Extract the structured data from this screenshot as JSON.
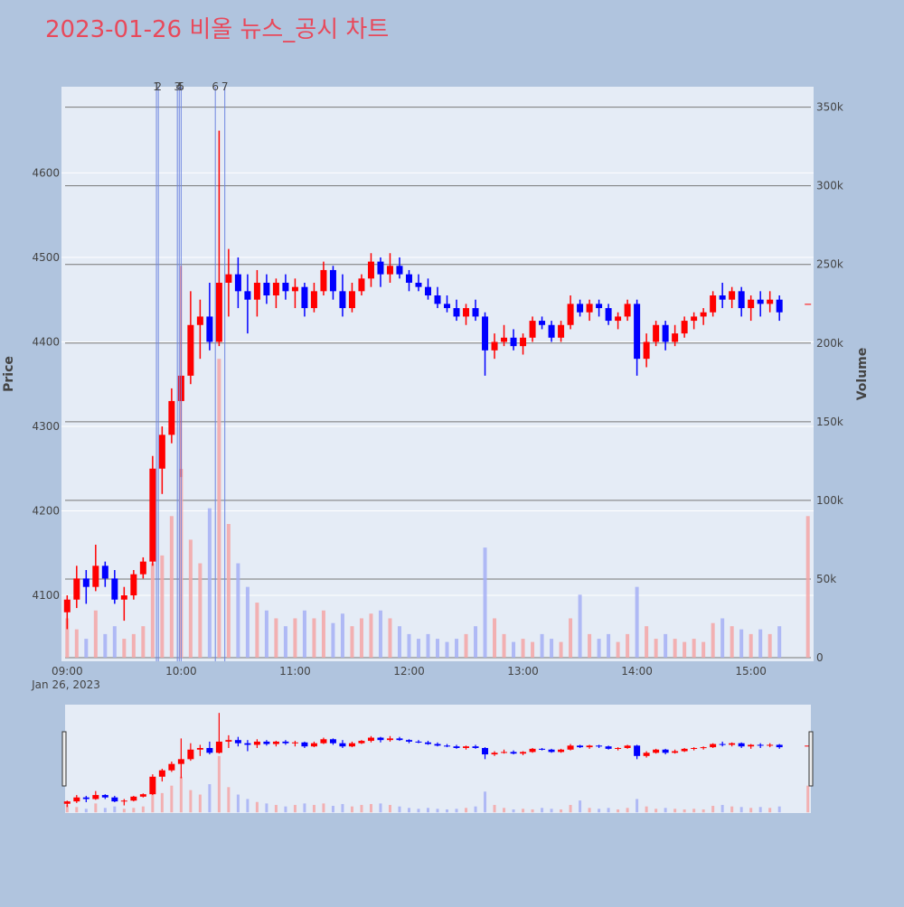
{
  "chart_data": {
    "type": "candlestick",
    "title": "2023-01-26 비올 뉴스_공시 차트",
    "title_color": "#e8495b",
    "x_date_label": "Jan 26, 2023",
    "ylabel": "Price",
    "y2label": "Volume",
    "increasing_color": "#ff0000",
    "decreasing_color": "#0000ff",
    "volume_increasing_color": "#f4a6a6",
    "volume_decreasing_color": "#a6b0f4",
    "annotation_color": "#6f86e0",
    "grid": true,
    "range_slider": true,
    "xlim": [
      "08:57",
      "15:33"
    ],
    "xticks": [
      "09:00",
      "10:00",
      "11:00",
      "12:00",
      "13:00",
      "14:00",
      "15:00"
    ],
    "ylim": [
      4022,
      4702
    ],
    "yticks": [
      4100,
      4200,
      4300,
      4400,
      4500,
      4600
    ],
    "y2lim": [
      -2300,
      363000
    ],
    "y2ticks": [
      0,
      {
        "value": 50000,
        "label": "50k"
      },
      {
        "value": 100000,
        "label": "100k"
      },
      {
        "value": 150000,
        "label": "150k"
      },
      {
        "value": 200000,
        "label": "200k"
      },
      {
        "value": 250000,
        "label": "250k"
      },
      {
        "value": 300000,
        "label": "300k"
      },
      {
        "value": 350000,
        "label": "350k"
      }
    ],
    "annotations": [
      {
        "text": "1",
        "x": "09:47"
      },
      {
        "text": "2",
        "x": "09:48"
      },
      {
        "text": "3",
        "x": "09:58"
      },
      {
        "text": "4",
        "x": "09:59"
      },
      {
        "text": "5",
        "x": "10:00"
      },
      {
        "text": "6",
        "x": "10:18"
      },
      {
        "text": "7",
        "x": "10:23"
      }
    ],
    "x": [
      "09:00",
      "09:05",
      "09:10",
      "09:15",
      "09:20",
      "09:25",
      "09:30",
      "09:35",
      "09:40",
      "09:45",
      "09:50",
      "09:55",
      "10:00",
      "10:05",
      "10:10",
      "10:15",
      "10:20",
      "10:25",
      "10:30",
      "10:35",
      "10:40",
      "10:45",
      "10:50",
      "10:55",
      "11:00",
      "11:05",
      "11:10",
      "11:15",
      "11:20",
      "11:25",
      "11:30",
      "11:35",
      "11:40",
      "11:45",
      "11:50",
      "11:55",
      "12:00",
      "12:05",
      "12:10",
      "12:15",
      "12:20",
      "12:25",
      "12:30",
      "12:35",
      "12:40",
      "12:45",
      "12:50",
      "12:55",
      "13:00",
      "13:05",
      "13:10",
      "13:15",
      "13:20",
      "13:25",
      "13:30",
      "13:35",
      "13:40",
      "13:45",
      "13:50",
      "13:55",
      "14:00",
      "14:05",
      "14:10",
      "14:15",
      "14:20",
      "14:25",
      "14:30",
      "14:35",
      "14:40",
      "14:45",
      "14:50",
      "14:55",
      "15:00",
      "15:05",
      "15:10",
      "15:15",
      "15:30"
    ],
    "open": [
      4080,
      4095,
      4120,
      4110,
      4135,
      4120,
      4095,
      4100,
      4125,
      4140,
      4250,
      4290,
      4330,
      4360,
      4420,
      4430,
      4400,
      4470,
      4480,
      4460,
      4450,
      4470,
      4455,
      4470,
      4460,
      4465,
      4440,
      4460,
      4485,
      4460,
      4440,
      4460,
      4475,
      4495,
      4480,
      4490,
      4480,
      4470,
      4465,
      4455,
      4445,
      4440,
      4430,
      4440,
      4430,
      4390,
      4400,
      4405,
      4395,
      4405,
      4425,
      4420,
      4405,
      4420,
      4445,
      4435,
      4445,
      4440,
      4425,
      4430,
      4445,
      4380,
      4400,
      4420,
      4400,
      4410,
      4425,
      4430,
      4435,
      4455,
      4450,
      4460,
      4440,
      4450,
      4445,
      4450,
      4445
    ],
    "high": [
      4100,
      4135,
      4130,
      4160,
      4140,
      4130,
      4110,
      4130,
      4145,
      4265,
      4300,
      4345,
      4490,
      4460,
      4450,
      4470,
      4650,
      4510,
      4500,
      4480,
      4485,
      4480,
      4475,
      4480,
      4475,
      4470,
      4470,
      4495,
      4490,
      4480,
      4470,
      4480,
      4505,
      4500,
      4505,
      4500,
      4485,
      4480,
      4475,
      4465,
      4455,
      4450,
      4445,
      4450,
      4435,
      4410,
      4420,
      4415,
      4410,
      4430,
      4430,
      4425,
      4425,
      4455,
      4450,
      4450,
      4450,
      4445,
      4435,
      4450,
      4450,
      4410,
      4425,
      4425,
      4420,
      4430,
      4435,
      4440,
      4460,
      4470,
      4465,
      4465,
      4455,
      4460,
      4460,
      4455,
      4445
    ],
    "low": [
      4060,
      4085,
      4090,
      4105,
      4110,
      4090,
      4070,
      4095,
      4120,
      4135,
      4220,
      4280,
      4240,
      4350,
      4380,
      4390,
      4395,
      4430,
      4440,
      4410,
      4430,
      4445,
      4440,
      4450,
      4440,
      4430,
      4435,
      4455,
      4450,
      4430,
      4435,
      4455,
      4465,
      4465,
      4470,
      4475,
      4460,
      4460,
      4450,
      4440,
      4435,
      4425,
      4420,
      4425,
      4360,
      4380,
      4395,
      4390,
      4385,
      4400,
      4415,
      4400,
      4400,
      4415,
      4430,
      4425,
      4430,
      4420,
      4415,
      4425,
      4360,
      4370,
      4395,
      4390,
      4395,
      4405,
      4415,
      4420,
      4430,
      4440,
      4440,
      4430,
      4425,
      4430,
      4435,
      4425,
      4445
    ],
    "close": [
      4095,
      4120,
      4110,
      4135,
      4120,
      4095,
      4100,
      4125,
      4140,
      4250,
      4290,
      4330,
      4360,
      4420,
      4430,
      4400,
      4470,
      4480,
      4460,
      4450,
      4470,
      4455,
      4470,
      4460,
      4465,
      4440,
      4460,
      4485,
      4460,
      4440,
      4460,
      4475,
      4495,
      4480,
      4490,
      4480,
      4470,
      4465,
      4455,
      4445,
      4440,
      4430,
      4440,
      4430,
      4390,
      4400,
      4405,
      4395,
      4405,
      4425,
      4420,
      4405,
      4420,
      4445,
      4435,
      4445,
      4440,
      4425,
      4430,
      4445,
      4380,
      4400,
      4420,
      4400,
      4410,
      4425,
      4430,
      4435,
      4455,
      4450,
      4460,
      4440,
      4450,
      4445,
      4450,
      4435,
      4445
    ],
    "volume": [
      25000,
      18000,
      12000,
      30000,
      15000,
      20000,
      12000,
      15000,
      20000,
      60000,
      65000,
      90000,
      120000,
      75000,
      60000,
      95000,
      190000,
      85000,
      60000,
      45000,
      35000,
      30000,
      25000,
      20000,
      25000,
      30000,
      25000,
      30000,
      22000,
      28000,
      20000,
      25000,
      28000,
      30000,
      25000,
      20000,
      15000,
      12000,
      15000,
      12000,
      10000,
      12000,
      15000,
      20000,
      70000,
      25000,
      15000,
      10000,
      12000,
      10000,
      15000,
      12000,
      10000,
      25000,
      40000,
      15000,
      12000,
      15000,
      10000,
      15000,
      45000,
      20000,
      12000,
      15000,
      12000,
      10000,
      12000,
      10000,
      22000,
      25000,
      20000,
      18000,
      15000,
      18000,
      15000,
      20000,
      90000
    ]
  }
}
